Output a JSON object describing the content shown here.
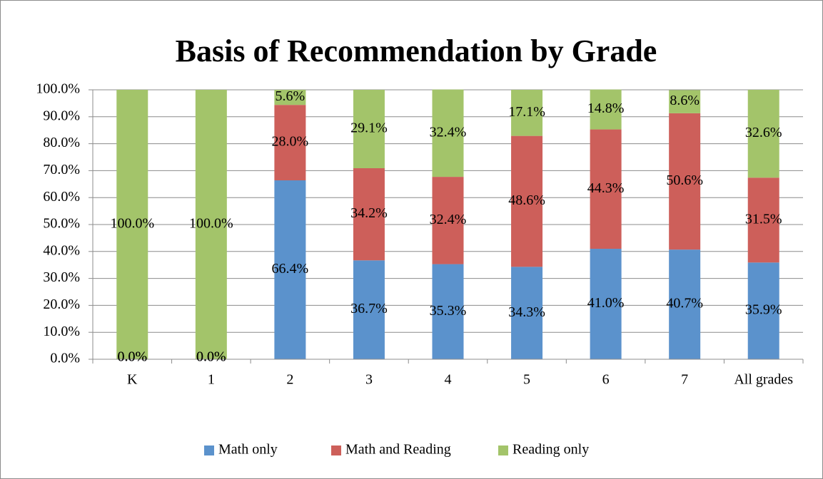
{
  "chart_data": {
    "type": "stacked_bar",
    "title": "Basis of Recommendation by Grade",
    "categories": [
      "K",
      "1",
      "2",
      "3",
      "4",
      "5",
      "6",
      "7",
      "All grades"
    ],
    "series": [
      {
        "name": "Math only",
        "color": "#5b92cc",
        "values": [
          0,
          0,
          66.4,
          36.7,
          35.3,
          34.3,
          41.0,
          40.7,
          35.9
        ],
        "value_labels": [
          "0.0%",
          "0.0%",
          "66.4%",
          "36.7%",
          "35.3%",
          "34.3%",
          "41.0%",
          "40.7%",
          "35.9%"
        ]
      },
      {
        "name": "Math and Reading",
        "color": "#cd5f5a",
        "values": [
          0,
          0,
          28.0,
          34.2,
          32.4,
          48.6,
          44.3,
          50.6,
          31.5
        ],
        "value_labels": [
          "0.0%",
          "0.0%",
          "28.0%",
          "34.2%",
          "32.4%",
          "48.6%",
          "44.3%",
          "50.6%",
          "31.5%"
        ]
      },
      {
        "name": "Reading only",
        "color": "#a3c46a",
        "values": [
          100,
          100,
          5.6,
          29.1,
          32.4,
          17.1,
          14.8,
          8.6,
          32.6
        ],
        "value_labels": [
          "100.0%",
          "100.0%",
          "5.6%",
          "29.1%",
          "32.4%",
          "17.1%",
          "14.8%",
          "8.6%",
          "32.6%"
        ]
      }
    ],
    "ylim": [
      0,
      100
    ],
    "yticks": [
      {
        "value": 0,
        "label": "0.0%"
      },
      {
        "value": 10,
        "label": "10.0%"
      },
      {
        "value": 20,
        "label": "20.0%"
      },
      {
        "value": 30,
        "label": "30.0%"
      },
      {
        "value": 40,
        "label": "40.0%"
      },
      {
        "value": 50,
        "label": "50.0%"
      },
      {
        "value": 60,
        "label": "60.0%"
      },
      {
        "value": 70,
        "label": "70.0%"
      },
      {
        "value": 80,
        "label": "80.0%"
      },
      {
        "value": 90,
        "label": "90.0%"
      },
      {
        "value": 100,
        "label": "100.0%"
      }
    ],
    "grid": true,
    "legend": "bottom"
  }
}
